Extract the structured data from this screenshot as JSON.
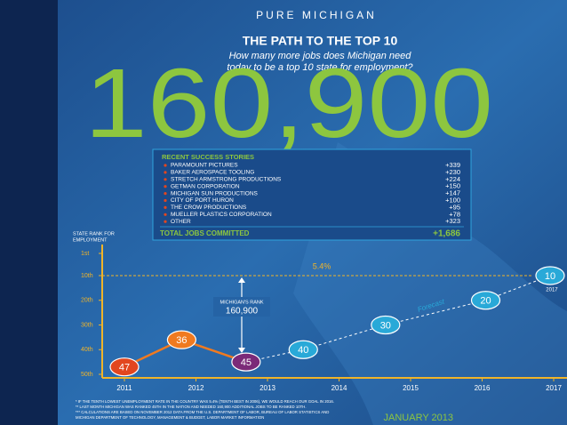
{
  "header": {
    "logo": "PURE MICHIGAN",
    "title": "THE PATH TO THE TOP 10",
    "subtitle": [
      "How many more jobs does Michigan need",
      "today to be a top 10 state for employment?"
    ],
    "headline": "160,900"
  },
  "stories": {
    "title": "RECENT SUCCESS STORIES",
    "rows": [
      [
        "PARAMOUNT PICTURES",
        "+339"
      ],
      [
        "BAKER AEROSPACE TOOLING",
        "+230"
      ],
      [
        "STRETCH ARMSTRONG PRODUCTIONS",
        "+224"
      ],
      [
        "GETMAN CORPORATION",
        "+150"
      ],
      [
        "MICHIGAN SUN PRODUCTIONS",
        "+147"
      ],
      [
        "CITY OF PORT HURON",
        "+100"
      ],
      [
        "THE CROW PRODUCTIONS",
        "+95"
      ],
      [
        "MUELLER PLASTICS CORPORATION",
        "+78"
      ],
      [
        "OTHER",
        "+323"
      ]
    ],
    "total": [
      "TOTAL JOBS COMMITTED",
      "+1,686"
    ]
  },
  "chart_data": {
    "type": "line",
    "y_label": [
      "STATE RANK FOR",
      "EMPLOYMENT"
    ],
    "x": [
      2011.0,
      2011.8,
      2012.7,
      2013.5,
      2014.65,
      2016.05,
      2016.95
    ],
    "values": [
      47,
      36,
      45,
      40,
      30,
      20,
      10
    ],
    "point_colors": [
      "#e2461f",
      "#f07a20",
      "#7b2a78",
      "#29a9d8",
      "#29a9d8",
      "#29a9d8",
      "#29a9d8"
    ],
    "line_color": "#f07a20",
    "forecast_color": "#ffffff",
    "dashed_from": 2,
    "xlim": [
      2010.7,
      2017.2
    ],
    "xticks": [
      2011,
      2012,
      2013,
      2014,
      2015,
      2016,
      2017
    ],
    "ylim": [
      50,
      1
    ],
    "yticks": [
      {
        "value": 1,
        "label": "1st"
      },
      {
        "value": 10,
        "label": "10th"
      },
      {
        "value": 20,
        "label": "20th"
      },
      {
        "value": 30,
        "label": "30th"
      },
      {
        "value": 40,
        "label": "40th"
      },
      {
        "value": 50,
        "label": "50th"
      }
    ],
    "axis_color": "#f0b429",
    "goal_rank": 10,
    "goal_label": "5.4%",
    "forecast_label": "Forecast",
    "rank_label": [
      "MICHIGAN'S RANK",
      "160,900"
    ],
    "end_label": "2017"
  },
  "footnotes": [
    "* IF THE TENTH LOWEST UNEMPLOYMENT RATE IN THE COUNTRY WAS 5.4% (TENTH BEST IN 2006), WE WOULD REACH OUR GOAL IN 2016.",
    "** LAST MONTH MICHIGAN WAS RANKED 45TH IN THE NATION AND NEEDED 160,900 ADDITIONAL JOBS TO BE RANKED 10TH.",
    "*** CALCULATIONS ARE BASED ON NOVEMBER 2012 DATA FROM THE U.S. DEPARTMENT OF LABOR, BUREAU OF LABOR STATISTICS AND",
    "MICHIGAN DEPARTMENT OF TECHNOLOGY, MANAGEMENT & BUDGET, LABOR MARKET INFORMATION"
  ],
  "date": "JANUARY 2013"
}
